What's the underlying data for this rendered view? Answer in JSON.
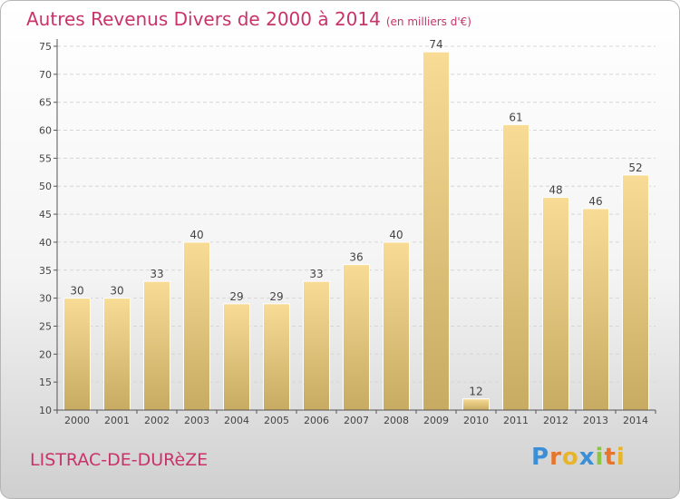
{
  "title": "Autres Revenus Divers de 2000 à 2014",
  "unit": "(en milliers d'€)",
  "commune": "LISTRAC-DE-DURèZE",
  "logo": {
    "letters": [
      "P",
      "r",
      "o",
      "x",
      "i",
      "t",
      "i"
    ],
    "colors": [
      "#3a8fd6",
      "#e8752a",
      "#e8b52a",
      "#3a8fd6",
      "#8cc63f",
      "#e8752a",
      "#e8b52a"
    ]
  },
  "colors": {
    "title": "#c8336a",
    "bar_light": "#f8dc96",
    "bar_dark": "#c8ab62"
  },
  "chart_data": {
    "type": "bar",
    "categories": [
      "2000",
      "2001",
      "2002",
      "2003",
      "2004",
      "2005",
      "2006",
      "2007",
      "2008",
      "2009",
      "2010",
      "2011",
      "2012",
      "2013",
      "2014"
    ],
    "values": [
      30,
      30,
      33,
      40,
      29,
      29,
      33,
      36,
      40,
      74,
      12,
      61,
      48,
      46,
      52
    ],
    "ylim": [
      10,
      75
    ],
    "yticks": [
      10,
      15,
      20,
      25,
      30,
      35,
      40,
      45,
      50,
      55,
      60,
      65,
      70,
      75
    ],
    "grid": true
  }
}
